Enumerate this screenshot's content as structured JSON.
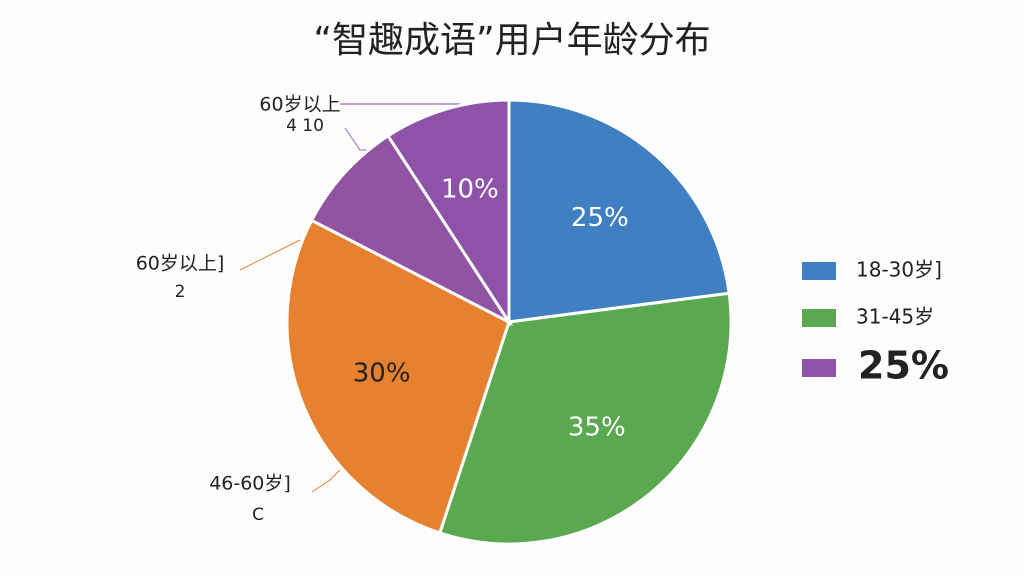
{
  "chart_data": {
    "type": "pie",
    "title": "“智趣成语”用户年龄分布",
    "values": [
      25,
      35,
      30,
      9,
      10
    ],
    "value_labels": [
      "25%",
      "35%",
      "30%",
      null,
      "10%"
    ],
    "colors": [
      "#3f7fc2",
      "#5aa84f",
      "#e6822f",
      "#9154a3",
      "#8e52a8"
    ],
    "annotations": [
      {
        "text": "60岁以上",
        "subtext": "4 10"
      },
      {
        "text": "60岁以上]",
        "subtext": "2"
      },
      {
        "text": "46-60岁]",
        "subtext": "C"
      }
    ],
    "legend": [
      {
        "label": "18-30岁]",
        "color": "#3f7fc2"
      },
      {
        "label": "31-45岁",
        "color": "#5aa84f"
      },
      {
        "label": "25%",
        "color": "#8e52a8"
      }
    ]
  }
}
